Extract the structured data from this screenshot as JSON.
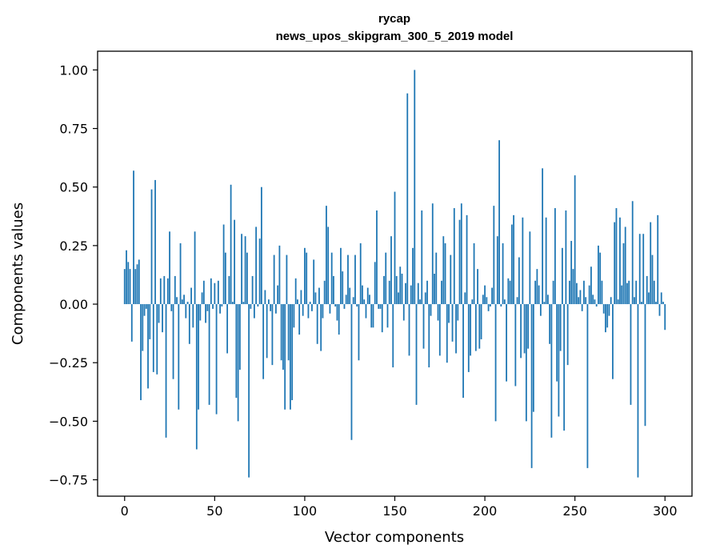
{
  "chart_data": {
    "type": "bar",
    "title": "rycap",
    "subtitle": "news_upos_skipgram_300_5_2019 model",
    "xlabel": "Vector components",
    "ylabel": "Components values",
    "xlim": [
      -15,
      315
    ],
    "ylim": [
      -0.82,
      1.08
    ],
    "xticks": [
      0,
      50,
      100,
      150,
      200,
      250,
      300
    ],
    "yticks": [
      -0.75,
      -0.5,
      -0.25,
      0.0,
      0.25,
      0.5,
      0.75,
      1.0
    ],
    "ytick_labels": [
      "−0.75",
      "−0.50",
      "−0.25",
      "0.00",
      "0.25",
      "0.50",
      "0.75",
      "1.00"
    ],
    "xtick_labels": [
      "0",
      "50",
      "100",
      "150",
      "200",
      "250",
      "300"
    ],
    "bar_color": "#1f77b4",
    "values": [
      0.15,
      0.23,
      0.18,
      0.15,
      -0.16,
      0.57,
      0.15,
      0.17,
      0.19,
      -0.41,
      -0.2,
      -0.05,
      -0.02,
      -0.36,
      -0.15,
      0.49,
      -0.29,
      0.53,
      -0.3,
      -0.08,
      0.11,
      -0.12,
      0.12,
      -0.57,
      0.11,
      0.31,
      -0.03,
      -0.32,
      0.12,
      0.03,
      -0.45,
      0.26,
      0.02,
      0.04,
      -0.06,
      0.01,
      -0.17,
      0.07,
      -0.1,
      0.31,
      -0.62,
      -0.45,
      -0.07,
      0.05,
      0.1,
      -0.08,
      -0.03,
      -0.43,
      0.11,
      -0.02,
      0.09,
      -0.47,
      0.1,
      -0.04,
      -0.01,
      0.34,
      0.22,
      -0.21,
      0.12,
      0.51,
      0.01,
      0.36,
      -0.4,
      -0.5,
      -0.28,
      0.3,
      0.01,
      0.29,
      0.22,
      -0.74,
      -0.02,
      0.12,
      -0.06,
      0.33,
      -0.01,
      0.28,
      0.5,
      -0.32,
      0.06,
      -0.23,
      0.02,
      -0.03,
      -0.26,
      0.21,
      -0.04,
      0.08,
      0.25,
      -0.24,
      -0.28,
      -0.45,
      0.21,
      -0.24,
      -0.45,
      -0.41,
      -0.1,
      0.11,
      0.02,
      -0.13,
      0.06,
      -0.05,
      0.24,
      0.22,
      -0.06,
      0.01,
      -0.03,
      0.19,
      0.05,
      -0.17,
      0.07,
      -0.2,
      -0.06,
      0.1,
      0.42,
      0.33,
      -0.04,
      0.22,
      0.12,
      -0.01,
      -0.07,
      -0.13,
      0.24,
      0.14,
      -0.02,
      0.04,
      0.21,
      0.07,
      -0.58,
      0.03,
      0.21,
      -0.01,
      -0.24,
      0.26,
      0.08,
      0.02,
      -0.06,
      0.07,
      0.04,
      -0.1,
      -0.1,
      0.18,
      0.4,
      -0.02,
      -0.02,
      -0.12,
      0.12,
      0.22,
      -0.1,
      0.1,
      0.29,
      -0.27,
      0.48,
      0.12,
      0.05,
      0.16,
      0.13,
      -0.07,
      0.09,
      0.9,
      -0.22,
      0.08,
      0.24,
      1.0,
      -0.43,
      0.09,
      0.02,
      0.4,
      -0.19,
      0.05,
      0.1,
      -0.27,
      -0.05,
      0.43,
      0.13,
      0.22,
      -0.07,
      -0.22,
      0.1,
      0.29,
      0.26,
      -0.25,
      -0.08,
      0.21,
      -0.16,
      0.41,
      -0.21,
      -0.07,
      0.36,
      0.43,
      -0.4,
      0.05,
      0.38,
      -0.29,
      -0.22,
      0.02,
      0.26,
      -0.2,
      0.15,
      -0.19,
      -0.15,
      0.04,
      0.08,
      0.03,
      -0.03,
      -0.01,
      0.07,
      0.42,
      -0.5,
      0.29,
      0.7,
      -0.01,
      0.26,
      0.02,
      -0.33,
      0.11,
      0.1,
      0.34,
      0.38,
      -0.35,
      0.03,
      0.2,
      -0.23,
      0.37,
      -0.21,
      -0.5,
      -0.19,
      0.31,
      -0.7,
      -0.46,
      0.1,
      0.15,
      0.08,
      -0.05,
      0.58,
      0.01,
      0.37,
      0.04,
      -0.17,
      -0.57,
      0.1,
      0.41,
      -0.33,
      -0.48,
      -0.2,
      0.24,
      -0.54,
      0.4,
      -0.26,
      0.1,
      0.27,
      0.15,
      0.55,
      0.09,
      0.03,
      0.06,
      -0.03,
      0.1,
      0.03,
      -0.7,
      0.08,
      0.16,
      0.04,
      0.02,
      -0.01,
      0.25,
      0.22,
      0.1,
      -0.04,
      -0.12,
      -0.1,
      -0.05,
      0.03,
      -0.32,
      0.35,
      0.41,
      0.02,
      0.37,
      0.08,
      0.26,
      0.33,
      0.09,
      0.1,
      -0.43,
      0.44,
      0.03,
      0.1,
      -0.74,
      0.3,
      0.01,
      0.3,
      -0.52,
      0.12,
      0.05,
      0.35,
      0.21,
      0.1,
      0.01,
      0.38,
      -0.05,
      0.05,
      0.01,
      -0.11
    ]
  }
}
